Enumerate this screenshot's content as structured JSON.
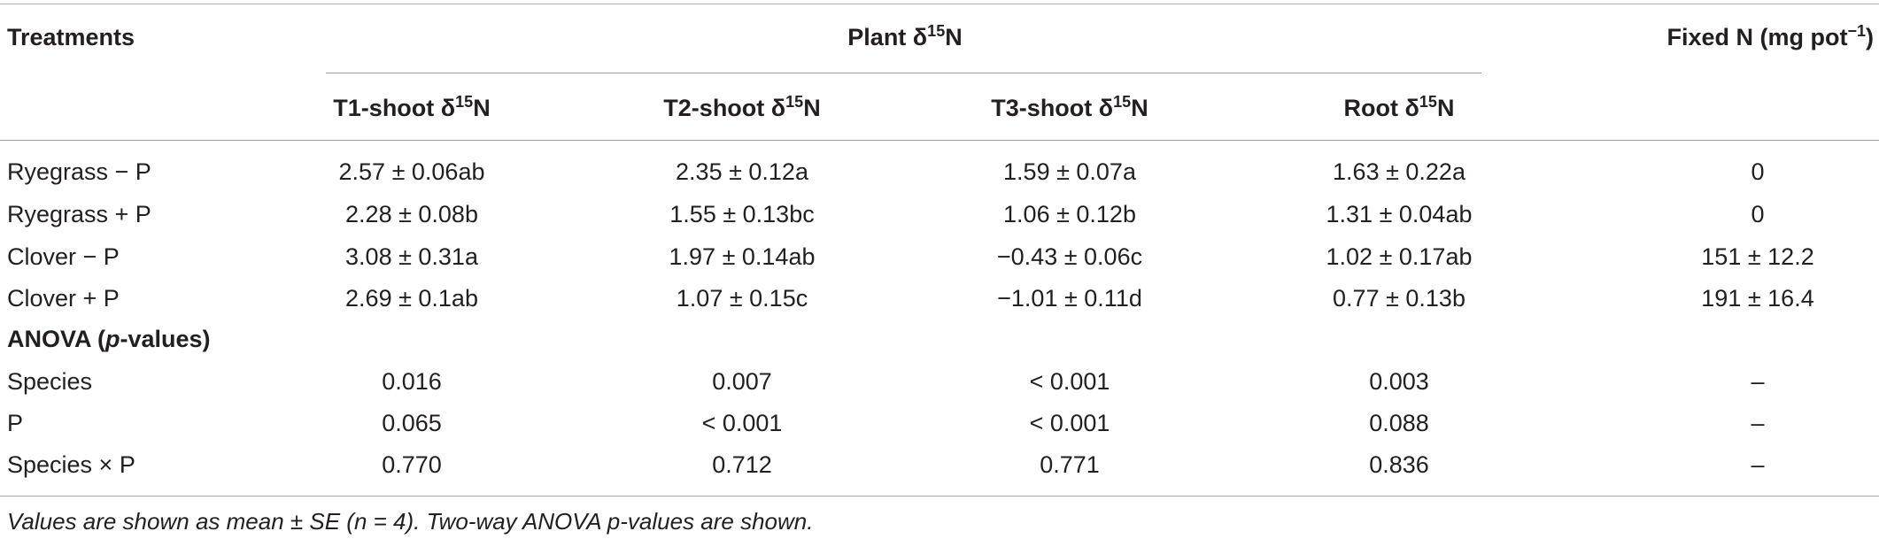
{
  "header": {
    "treatments": "Treatments",
    "group_label": "Plant δ",
    "group_sup": "15",
    "group_suffix": "N",
    "fixed_label": "Fixed N (mg pot",
    "fixed_sup": "−1",
    "fixed_suffix": ")",
    "columns": [
      {
        "label": "T1-shoot δ",
        "sup": "15",
        "suffix": "N"
      },
      {
        "label": "T2-shoot δ",
        "sup": "15",
        "suffix": "N"
      },
      {
        "label": "T3-shoot δ",
        "sup": "15",
        "suffix": "N"
      },
      {
        "label": "Root δ",
        "sup": "15",
        "suffix": "N"
      }
    ]
  },
  "rows": [
    {
      "treatment": "Ryegrass − P",
      "t1": "2.57 ± 0.06ab",
      "t2": "2.35 ± 0.12a",
      "t3": "1.59 ± 0.07a",
      "root": "1.63 ± 0.22a",
      "fixed": "0"
    },
    {
      "treatment": "Ryegrass + P",
      "t1": "2.28 ± 0.08b",
      "t2": "1.55 ± 0.13bc",
      "t3": "1.06 ± 0.12b",
      "root": "1.31 ± 0.04ab",
      "fixed": "0"
    },
    {
      "treatment": "Clover − P",
      "t1": "3.08 ± 0.31a",
      "t2": "1.97 ± 0.14ab",
      "t3": "−0.43 ± 0.06c",
      "root": "1.02 ± 0.17ab",
      "fixed": "151 ± 12.2"
    },
    {
      "treatment": "Clover + P",
      "t1": "2.69 ± 0.1ab",
      "t2": "1.07 ± 0.15c",
      "t3": "−1.01 ± 0.11d",
      "root": "0.77 ± 0.13b",
      "fixed": "191 ± 16.4"
    }
  ],
  "anova": {
    "heading_prefix": "ANOVA (",
    "heading_italic": "p",
    "heading_suffix": "-values)",
    "rows": [
      {
        "treatment": "Species",
        "t1": "0.016",
        "t2": "0.007",
        "t3": "< 0.001",
        "root": "0.003",
        "fixed": "–"
      },
      {
        "treatment": "P",
        "t1": "0.065",
        "t2": "< 0.001",
        "t3": "< 0.001",
        "root": "0.088",
        "fixed": "–"
      },
      {
        "treatment": "Species × P",
        "t1": "0.770",
        "t2": "0.712",
        "t3": "0.771",
        "root": "0.836",
        "fixed": "–"
      }
    ]
  },
  "footnote": "Values are shown as mean ± SE (n = 4). Two-way ANOVA p-values are shown."
}
